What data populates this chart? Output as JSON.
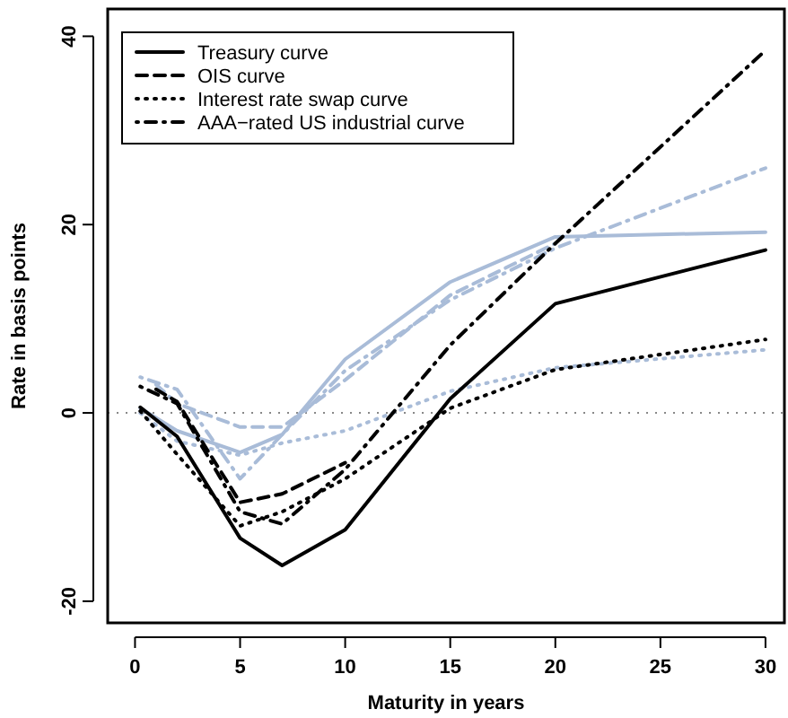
{
  "chart_data": {
    "type": "line",
    "xlabel": "Maturity in years",
    "ylabel": "Rate in basis points",
    "xlim": [
      -1.3,
      30.9
    ],
    "ylim": [
      -22.3,
      42.9
    ],
    "xticks": [
      0,
      5,
      10,
      15,
      20,
      25,
      30
    ],
    "yticks": [
      -20,
      0,
      20,
      40
    ],
    "grid": false,
    "legend": "top left",
    "ref_lines": [
      {
        "axis": "y",
        "value": 0,
        "color": "#888888",
        "line_style": "dotted"
      }
    ],
    "series": [
      {
        "name": "Treasury curve",
        "color": "#000000",
        "line_style": "solid",
        "x": [
          0.25,
          2,
          5,
          7,
          10,
          15,
          20,
          30
        ],
        "values": [
          0.6,
          -2.5,
          -13.3,
          -16.2,
          -12.4,
          1.5,
          11.6,
          17.3
        ]
      },
      {
        "name": "OIS curve",
        "color": "#000000",
        "line_style": "dashed",
        "x": [
          1,
          2,
          5,
          7,
          10
        ],
        "values": [
          2.5,
          1.2,
          -9.5,
          -8.6,
          -5.3
        ]
      },
      {
        "name": "Interest rate swap curve",
        "color": "#000000",
        "line_style": "dotted",
        "x": [
          0.25,
          2,
          5,
          7,
          10,
          15,
          20,
          30
        ],
        "values": [
          0.2,
          -4.4,
          -12,
          -10.5,
          -7,
          0.5,
          4.6,
          7.8
        ]
      },
      {
        "name": "AAA−rated US industrial curve",
        "color": "#000000",
        "line_style": "dashdot",
        "x": [
          0.25,
          2,
          5,
          7,
          10,
          15,
          20,
          30
        ],
        "values": [
          2.8,
          1,
          -10.5,
          -11.8,
          -6,
          7.2,
          18,
          38.5
        ]
      },
      {
        "color": "#a9bcd8",
        "line_style": "solid",
        "x": [
          0.25,
          2,
          5,
          7,
          10,
          15,
          20,
          30
        ],
        "values": [
          0.5,
          -1.9,
          -4.2,
          -2.3,
          5.7,
          13.9,
          18.7,
          19.2
        ]
      },
      {
        "color": "#a9bcd8",
        "line_style": "dashed",
        "x": [
          1,
          2,
          5,
          7,
          10,
          15,
          20
        ],
        "values": [
          3,
          1,
          -1.5,
          -1.5,
          3.5,
          12.5,
          18
        ]
      },
      {
        "color": "#a9bcd8",
        "line_style": "dotted",
        "x": [
          0.25,
          2,
          5,
          7,
          10,
          15,
          20,
          30
        ],
        "values": [
          0,
          -3,
          -4.5,
          -3.2,
          -1.9,
          2.3,
          4.8,
          6.7
        ]
      },
      {
        "color": "#a9bcd8",
        "line_style": "dashdot",
        "x": [
          0.25,
          2,
          5,
          7,
          10,
          15,
          20,
          30
        ],
        "values": [
          3.8,
          2.5,
          -7,
          -2.3,
          4.5,
          12,
          17.5,
          26
        ]
      }
    ]
  }
}
